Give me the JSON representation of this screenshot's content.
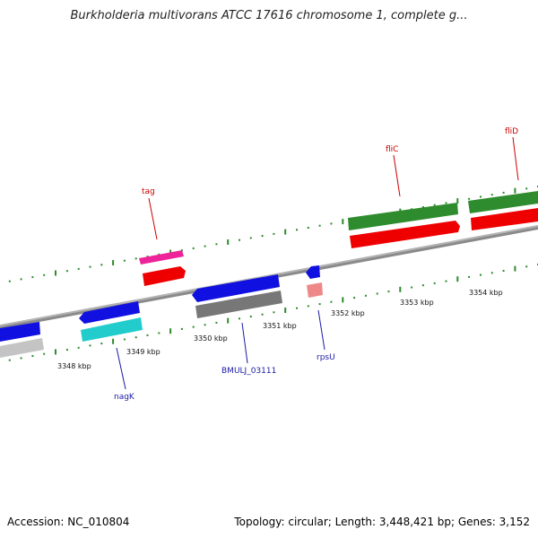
{
  "map": {
    "title": "Burkholderia multivorans ATCC 17616 chromosome 1, complete g...",
    "accession": "Accession: NC_010804",
    "summary": "Topology: circular; Length: 3,448,421 bp; Genes: 3,152"
  },
  "scale_labels": [
    "3348 kbp",
    "3349 kbp",
    "3350 kbp",
    "3351 kbp",
    "3352 kbp",
    "3353 kbp",
    "3354 kbp"
  ],
  "gene_labels": [
    {
      "text": "tag",
      "color": "#cc0000"
    },
    {
      "text": "fliC",
      "color": "#cc0000"
    },
    {
      "text": "fliD",
      "color": "#cc0000"
    },
    {
      "text": "nagK",
      "color": "#1a1aa6"
    },
    {
      "text": "BMULJ_03111",
      "color": "#1a1aa6"
    },
    {
      "text": "rpsU",
      "color": "#1a1aa6"
    }
  ],
  "colors": {
    "backbone": "#888888",
    "dots": "#2e8b2e",
    "forward_cds": "#2e8b2e",
    "forward_protein": "#ff0000",
    "reverse_cds": "#1010e0",
    "tag_cds": "#ee2299",
    "nagK_protein": "#22cccc",
    "unknown_protein": "#777777",
    "rpsU_protein": "#ee8888"
  }
}
